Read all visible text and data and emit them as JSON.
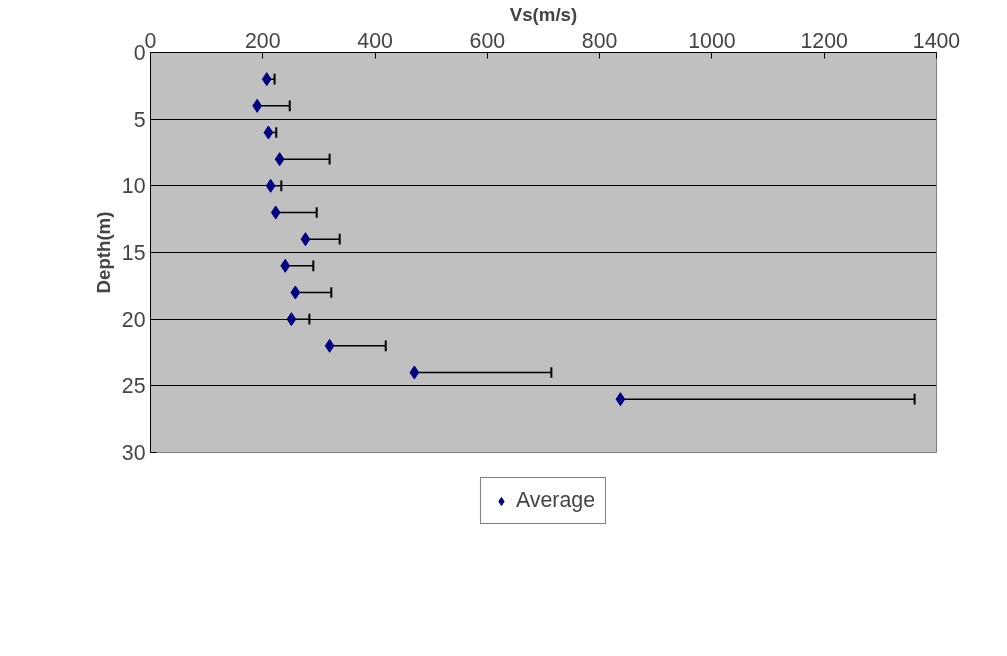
{
  "chart_data": {
    "type": "scatter",
    "xlabel": "Vs(m/s)",
    "ylabel": "Depth(m)",
    "series": [
      {
        "name": "Average",
        "color": "#000080",
        "x": [
          207,
          190,
          210,
          230,
          214,
          223,
          276,
          240,
          258,
          251,
          319,
          470,
          837
        ],
        "values": [
          2,
          4,
          6,
          8,
          10,
          12,
          14,
          16,
          18,
          20,
          22,
          24,
          26
        ],
        "xerrors": [
          [
            207,
            221
          ],
          [
            190,
            248
          ],
          [
            210,
            224
          ],
          [
            230,
            319
          ],
          [
            214,
            233
          ],
          [
            223,
            296
          ],
          [
            276,
            337
          ],
          [
            240,
            290
          ],
          [
            258,
            322
          ],
          [
            251,
            283
          ],
          [
            319,
            419
          ],
          [
            470,
            714
          ],
          [
            837,
            1361
          ]
        ]
      }
    ],
    "xlim": [
      0,
      1400
    ],
    "xticks": [
      0,
      200,
      400,
      600,
      800,
      1000,
      1200,
      1400
    ],
    "ylim": [
      30,
      0
    ],
    "yticks": [
      0,
      5,
      10,
      15,
      20,
      25,
      30
    ],
    "grid": "y",
    "legend": "bottom",
    "marker": "diamond"
  }
}
